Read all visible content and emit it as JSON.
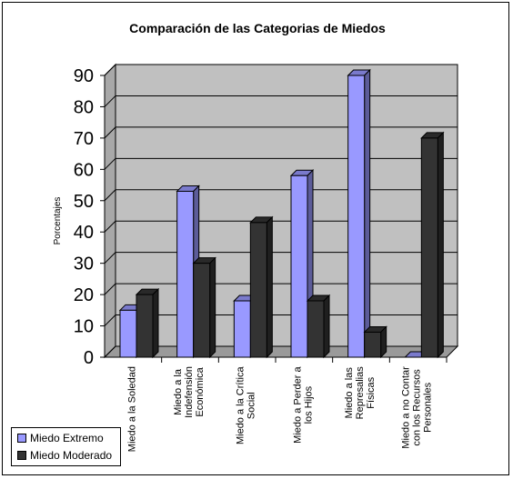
{
  "chart_data": {
    "type": "bar",
    "title": "Comparación de las Categorias de Miedos",
    "ylabel": "Porcentajes",
    "xlabel": "",
    "ylim": [
      0,
      90
    ],
    "yticks": [
      0,
      10,
      20,
      30,
      40,
      50,
      60,
      70,
      80,
      90
    ],
    "categories": [
      [
        "Miedo a la Soledad"
      ],
      [
        "Miedo a la",
        "Indefensión",
        "Económica"
      ],
      [
        "Miedo a la Crítica",
        "Social"
      ],
      [
        "Miedo a Perder a",
        "los Hijos"
      ],
      [
        "Miedo a las",
        "Represalias",
        "Físicas"
      ],
      [
        "Miedo a no Contar",
        "con los Recursos",
        "Personales"
      ]
    ],
    "series": [
      {
        "name": "Miedo Extremo",
        "values": [
          15,
          53,
          18,
          58,
          90,
          0
        ],
        "color": "#9999ff"
      },
      {
        "name": "Miedo Moderado",
        "values": [
          20,
          30,
          43,
          18,
          8,
          70
        ],
        "color": "#333333"
      }
    ],
    "grid": true,
    "legend_position": "bottom-left",
    "wall_color": "#c0c0c0"
  }
}
